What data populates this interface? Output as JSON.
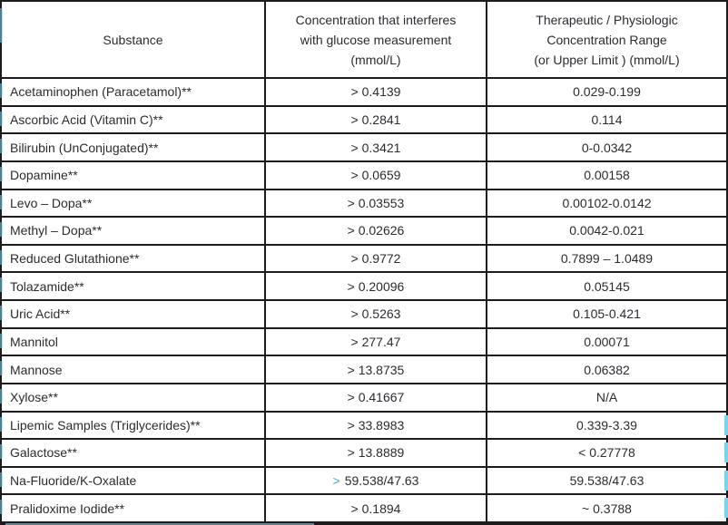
{
  "colors": {
    "border": "#1c1c1c",
    "text": "#2b2b31",
    "accent_blue": "#3fa9dc",
    "artifact_cyan": "#7fd2ec"
  },
  "table": {
    "headers": {
      "substance": "Substance",
      "interference": [
        "Concentration that interferes",
        "with glucose measurement",
        "(mmol/L)"
      ],
      "range": [
        "Therapeutic / Physiologic",
        "Concentration Range",
        "(or Upper Limit ) (mmol/L)"
      ]
    },
    "rows": [
      {
        "substance": "Acetaminophen (Paracetamol)**",
        "interference": "> 0.4139",
        "range": "0.029-0.199"
      },
      {
        "substance": "Ascorbic Acid (Vitamin C)**",
        "interference": "> 0.2841",
        "range": "0.114"
      },
      {
        "substance": "Bilirubin (UnConjugated)**",
        "interference": "> 0.3421",
        "range": "0-0.0342"
      },
      {
        "substance": "Dopamine**",
        "interference": "> 0.0659",
        "range": "0.00158"
      },
      {
        "substance": "Levo – Dopa**",
        "interference": "> 0.03553",
        "range": "0.00102-0.0142"
      },
      {
        "substance": "Methyl – Dopa**",
        "interference": "> 0.02626",
        "range": "0.0042-0.021"
      },
      {
        "substance": "Reduced Glutathione**",
        "interference": "> 0.9772",
        "range": "0.7899 – 1.0489"
      },
      {
        "substance": "Tolazamide**",
        "interference": "> 0.20096",
        "range": "0.05145"
      },
      {
        "substance": "Uric Acid**",
        "interference": "> 0.5263",
        "range": "0.105-0.421"
      },
      {
        "substance": "Mannitol",
        "interference": "> 277.47",
        "range": "0.00071"
      },
      {
        "substance": "Mannose",
        "interference": "> 13.8735",
        "range": "0.06382"
      },
      {
        "substance": "Xylose**",
        "interference": "> 0.41667",
        "range": "N/A"
      },
      {
        "substance": "Lipemic Samples (Triglycerides)**",
        "interference": "> 33.8983",
        "range": "0.339-3.39"
      },
      {
        "substance": "Galactose**",
        "interference": "> 13.8889",
        "range": "< 0.27778"
      },
      {
        "substance": "Na-Fluoride/K-Oxalate",
        "interference_prefix": ">",
        "interference_value": "59.538/47.63",
        "range": "59.538/47.63"
      },
      {
        "substance": "Pralidoxime Iodide**",
        "interference": "> 0.1894",
        "range": "~ 0.3788"
      }
    ]
  }
}
